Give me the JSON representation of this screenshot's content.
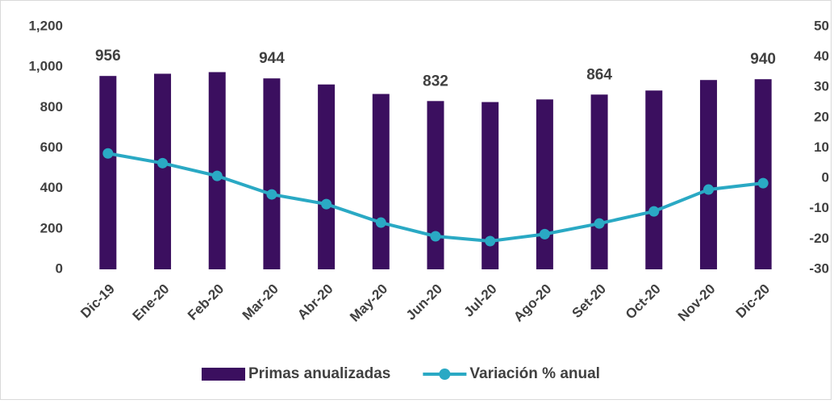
{
  "chart_data": {
    "type": "bar_line",
    "categories": [
      "Dic-19",
      "Ene-20",
      "Feb-20",
      "Mar-20",
      "Abr-20",
      "May-20",
      "Jun-20",
      "Jul-20",
      "Ago-20",
      "Set-20",
      "Oct-20",
      "Nov-20",
      "Dic-20"
    ],
    "series": [
      {
        "name": "Primas anualizadas",
        "type": "bar",
        "color": "#3b0f5f",
        "values": [
          956,
          967,
          975,
          944,
          914,
          867,
          832,
          827,
          840,
          864,
          884,
          936,
          940
        ],
        "value_labels": [
          "956",
          null,
          null,
          "944",
          null,
          null,
          "832",
          null,
          null,
          "864",
          null,
          null,
          "940"
        ]
      },
      {
        "name": "Variación % anual",
        "type": "line",
        "axis": "y2",
        "color": "#2aa9c4",
        "values": [
          8.2,
          5,
          0.8,
          -5.3,
          -8.5,
          -14.6,
          -19.1,
          -20.7,
          -18.4,
          -14.9,
          -10.9,
          -3.7,
          -1.6
        ]
      }
    ],
    "ylim": [
      0,
      1200
    ],
    "yticks": [
      0,
      {
        "value": 200,
        "label": "200"
      },
      400,
      600,
      800,
      {
        "value": 1000,
        "label": "1,000"
      },
      {
        "value": 1200,
        "label": "1,200"
      }
    ],
    "y2lim": [
      -30,
      50
    ],
    "y2ticks": [
      -30,
      -20,
      -10,
      0,
      10,
      20,
      30,
      40,
      50
    ],
    "legend": "bottom"
  }
}
